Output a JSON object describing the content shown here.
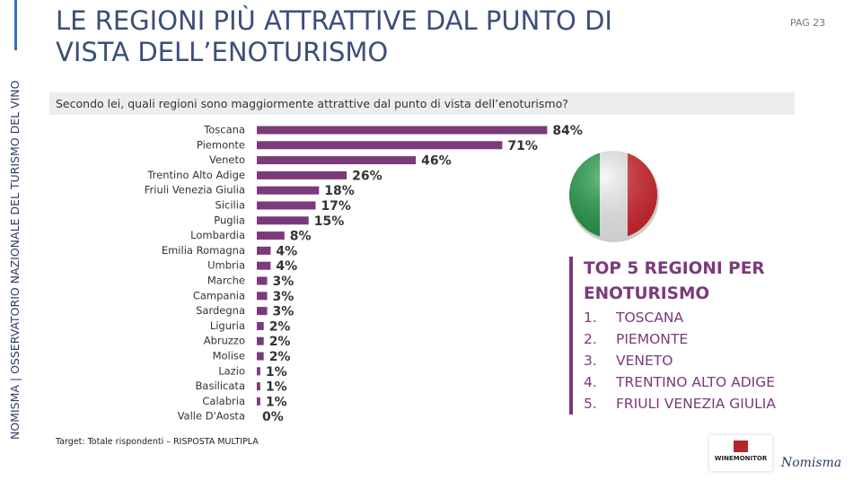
{
  "header": {
    "title": "LE REGIONI PIÙ ATTRATTIVE DAL PUNTO DI VISTA DELL’ENOTURISMO",
    "page": "PAG 23",
    "side_label": "NOMISMA | OSSERVATORIO NAZIONALE DEL TURISMO DEL VINO"
  },
  "question": "Secondo lei, quali regioni sono maggiormente attrattive dal punto di vista dell’enoturismo?",
  "chart_data": {
    "type": "bar",
    "orientation": "horizontal",
    "color": "#7b3a7a",
    "categories": [
      "Toscana",
      "Piemonte",
      "Veneto",
      "Trentino Alto Adige",
      "Friuli Venezia Giulia",
      "Sicilia",
      "Puglia",
      "Lombardia",
      "Emilia Romagna",
      "Umbria",
      "Marche",
      "Campania",
      "Sardegna",
      "Liguria",
      "Abruzzo",
      "Molise",
      "Lazio",
      "Basilicata",
      "Calabria",
      "Valle D'Aosta"
    ],
    "values": [
      84,
      71,
      46,
      26,
      18,
      17,
      15,
      8,
      4,
      4,
      3,
      3,
      3,
      2,
      2,
      2,
      1,
      1,
      1,
      0
    ],
    "value_labels": [
      "84%",
      "71%",
      "46%",
      "26%",
      "18%",
      "17%",
      "15%",
      "8%",
      "4%",
      "4%",
      "3%",
      "3%",
      "3%",
      "2%",
      "2%",
      "2%",
      "1%",
      "1%",
      "1%",
      "0%"
    ]
  },
  "top5": {
    "title": "TOP 5 REGIONI PER ENOTURISMO",
    "items": [
      {
        "number": "1.",
        "name": "TOSCANA"
      },
      {
        "number": "2.",
        "name": "PIEMONTE"
      },
      {
        "number": "3.",
        "name": "VENETO"
      },
      {
        "number": "4.",
        "name": "TRENTINO ALTO ADIGE"
      },
      {
        "number": "5.",
        "name": "FRIULI VENEZIA GIULIA"
      }
    ]
  },
  "footer": {
    "note": "Target: Totale rispondenti – RISPOSTA MULTIPLA",
    "logo_winemonitor": "WINEMONITOR",
    "logo_nomisma": "Nomisma"
  }
}
